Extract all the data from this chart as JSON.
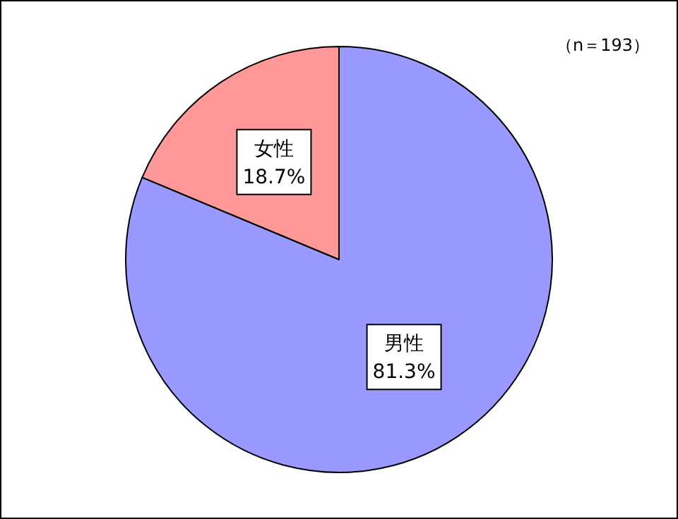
{
  "chart_data": {
    "type": "pie",
    "categories": [
      "男性",
      "女性"
    ],
    "values": [
      81.3,
      18.7
    ],
    "colors": [
      "#9999ff",
      "#ff9999"
    ],
    "value_labels": [
      "81.3%",
      "18.7%"
    ],
    "annotations": [
      "（n＝193）"
    ],
    "legend": false
  }
}
